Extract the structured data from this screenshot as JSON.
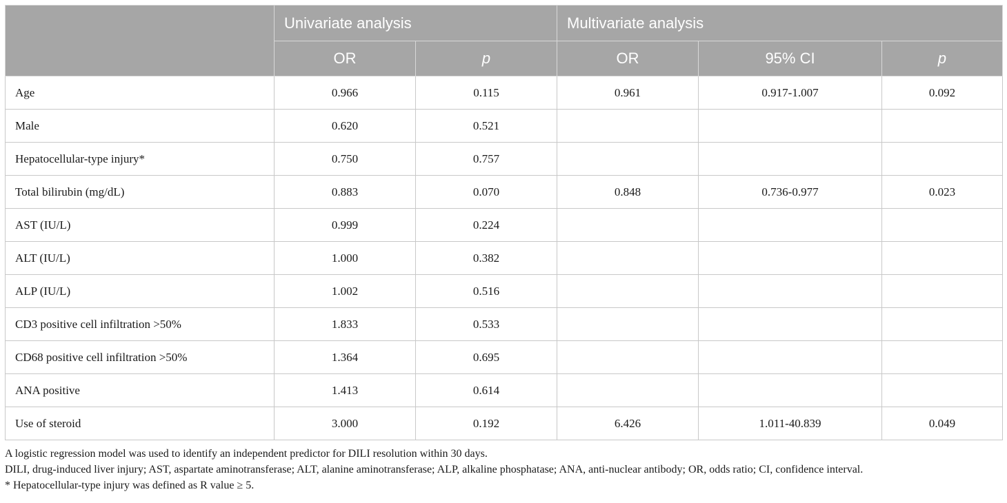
{
  "header": {
    "group_univariate": "Univariate analysis",
    "group_multivariate": "Multivariate analysis",
    "col_uni_or": "OR",
    "col_uni_p": "p",
    "col_multi_or": "OR",
    "col_multi_ci": "95% CI",
    "col_multi_p": "p"
  },
  "rows": [
    {
      "label": "Age",
      "uni_or": "0.966",
      "uni_p": "0.115",
      "multi_or": "0.961",
      "multi_ci": "0.917-1.007",
      "multi_p": "0.092"
    },
    {
      "label": "Male",
      "uni_or": "0.620",
      "uni_p": "0.521",
      "multi_or": "",
      "multi_ci": "",
      "multi_p": ""
    },
    {
      "label": "Hepatocellular-type injury*",
      "uni_or": "0.750",
      "uni_p": "0.757",
      "multi_or": "",
      "multi_ci": "",
      "multi_p": ""
    },
    {
      "label": "Total bilirubin (mg/dL)",
      "uni_or": "0.883",
      "uni_p": "0.070",
      "multi_or": "0.848",
      "multi_ci": "0.736-0.977",
      "multi_p": "0.023"
    },
    {
      "label": "AST (IU/L)",
      "uni_or": "0.999",
      "uni_p": "0.224",
      "multi_or": "",
      "multi_ci": "",
      "multi_p": ""
    },
    {
      "label": "ALT (IU/L)",
      "uni_or": "1.000",
      "uni_p": "0.382",
      "multi_or": "",
      "multi_ci": "",
      "multi_p": ""
    },
    {
      "label": "ALP (IU/L)",
      "uni_or": "1.002",
      "uni_p": "0.516",
      "multi_or": "",
      "multi_ci": "",
      "multi_p": ""
    },
    {
      "label": "CD3 positive cell infiltration >50%",
      "uni_or": "1.833",
      "uni_p": "0.533",
      "multi_or": "",
      "multi_ci": "",
      "multi_p": ""
    },
    {
      "label": "CD68 positive cell infiltration >50%",
      "uni_or": "1.364",
      "uni_p": "0.695",
      "multi_or": "",
      "multi_ci": "",
      "multi_p": ""
    },
    {
      "label": "ANA positive",
      "uni_or": "1.413",
      "uni_p": "0.614",
      "multi_or": "",
      "multi_ci": "",
      "multi_p": ""
    },
    {
      "label": "Use of steroid",
      "uni_or": "3.000",
      "uni_p": "0.192",
      "multi_or": "6.426",
      "multi_ci": "1.011-40.839",
      "multi_p": "0.049"
    }
  ],
  "footnotes": {
    "line1": "A logistic regression model was used to identify an independent predictor for DILI resolution within 30 days.",
    "line2": "DILI, drug-induced liver injury; AST, aspartate aminotransferase; ALT, alanine aminotransferase; ALP, alkaline phosphatase; ANA, anti-nuclear antibody; OR, odds ratio; CI, confidence interval.",
    "line3": "* Hepatocellular-type injury was defined as R value ≥ 5."
  },
  "colors": {
    "header_bg": "#a6a6a6",
    "header_text": "#ffffff",
    "border": "#c8c8c8"
  }
}
